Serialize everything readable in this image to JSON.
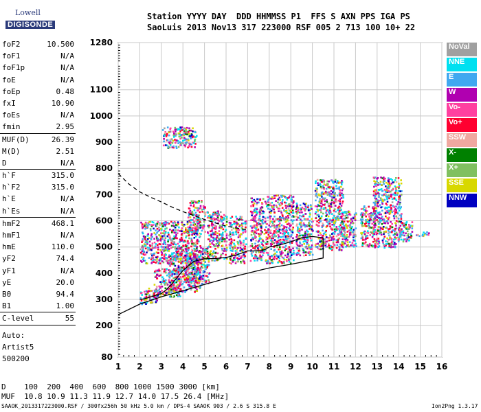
{
  "header": {
    "line1": "Station YYYY DAY  DDD HHMMSS P1  FFS S AXN PPS IGA PS",
    "line2": "SaoLuis 2013 Nov13 317 223000 RSF 005 2 713 100 10+ 22"
  },
  "logo": {
    "top": "Lowell",
    "bottom": "DIGISONDE"
  },
  "parameters": [
    [
      {
        "name": "foF2",
        "value": "10.500"
      },
      {
        "name": "foF1",
        "value": "N/A"
      },
      {
        "name": "foF1p",
        "value": "N/A"
      },
      {
        "name": "foE",
        "value": "N/A"
      },
      {
        "name": "foEp",
        "value": "0.48"
      },
      {
        "name": "fxI",
        "value": "10.90"
      },
      {
        "name": "foEs",
        "value": "N/A"
      },
      {
        "name": "fmin",
        "value": "2.95"
      }
    ],
    [
      {
        "name": "MUF(D)",
        "value": "26.39"
      },
      {
        "name": "M(D)",
        "value": "2.51"
      },
      {
        "name": "D",
        "value": "N/A"
      }
    ],
    [
      {
        "name": "h`F",
        "value": "315.0"
      },
      {
        "name": "h`F2",
        "value": "315.0"
      },
      {
        "name": "h`E",
        "value": "N/A"
      },
      {
        "name": "h`Es",
        "value": "N/A"
      }
    ],
    [
      {
        "name": "hmF2",
        "value": "468.1"
      },
      {
        "name": "hmF1",
        "value": "N/A"
      },
      {
        "name": "hmE",
        "value": "110.0"
      },
      {
        "name": "yF2",
        "value": "74.4"
      },
      {
        "name": "yF1",
        "value": "N/A"
      },
      {
        "name": "yE",
        "value": "20.0"
      },
      {
        "name": "B0",
        "value": "94.4"
      },
      {
        "name": "B1",
        "value": "1.00"
      }
    ],
    [
      {
        "name": "C-level",
        "value": "55"
      }
    ]
  ],
  "auto_info": {
    "line1": "Auto:",
    "line2": "Artist5",
    "line3": "500200"
  },
  "legend": [
    {
      "label": "NoVal",
      "color": "#a0a0a0"
    },
    {
      "label": "NNE",
      "color": "#00e0f0"
    },
    {
      "label": "E",
      "color": "#40a8f0"
    },
    {
      "label": "W",
      "color": "#b000b0"
    },
    {
      "label": "Vo-",
      "color": "#ff40a0"
    },
    {
      "label": "Vo+",
      "color": "#ff0030"
    },
    {
      "label": "SSW",
      "color": "#f0a8a0"
    },
    {
      "label": "X-",
      "color": "#008000"
    },
    {
      "label": "X+",
      "color": "#80c060"
    },
    {
      "label": "SSE",
      "color": "#d8d800"
    },
    {
      "label": "NNW",
      "color": "#0000c0"
    }
  ],
  "footer": {
    "line1": "D    100  200  400  600  800 1000 1500 3000 [km]",
    "line2": "MUF  10.8 10.9 11.3 11.9 12.7 14.0 17.5 26.4 [MHz]",
    "line3": "SAAOK_2013317223000.RSF / 300fx256h 50 kHz 5.0 km / DPS-4 SAAOK 903 / 2.6 S 315.8 E",
    "version": "Ion2Png 1.3.17"
  },
  "chart_data": {
    "type": "scatter",
    "title": "",
    "xlabel": "",
    "ylabel": "",
    "xlim": [
      1,
      16
    ],
    "ylim": [
      80,
      1280
    ],
    "x_ticks": [
      1,
      2,
      3,
      4,
      5,
      6,
      7,
      8,
      9,
      10,
      11,
      12,
      13,
      14,
      15,
      16
    ],
    "y_ticks": [
      80,
      200,
      300,
      400,
      500,
      600,
      700,
      800,
      900,
      1000,
      1100,
      1280
    ],
    "grid": true,
    "series": [
      {
        "name": "trace-solid",
        "x": [
          1.0,
          2.0,
          3.0,
          4.0,
          5.0,
          6.0,
          7.0,
          8.0,
          9.0,
          10.0,
          10.5,
          10.5,
          10.0,
          9.5,
          9.0,
          8.5,
          8.0,
          7.8,
          7.5,
          7.0,
          6.5,
          6.0,
          5.5,
          5.0,
          4.5,
          4.0,
          3.5,
          3.2,
          3.0,
          2.6,
          2.2,
          2.0
        ],
        "y": [
          242,
          282,
          310,
          333,
          357,
          380,
          400,
          420,
          434,
          450,
          458,
          535,
          540,
          535,
          520,
          508,
          500,
          490,
          485,
          485,
          470,
          460,
          456,
          455,
          445,
          410,
          360,
          335,
          322,
          312,
          302,
          300
        ]
      },
      {
        "name": "trace-dashed",
        "x": [
          1.0,
          1.5,
          2.0,
          2.5,
          3.0,
          3.5,
          4.0,
          4.5,
          5.0,
          5.5,
          6.0,
          6.5,
          7.0
        ],
        "y": [
          780,
          740,
          710,
          690,
          672,
          652,
          635,
          620,
          605,
          592,
          580,
          572,
          565
        ]
      },
      {
        "name": "echo-clusters",
        "clusters": [
          {
            "x": [
              2.0,
              2.8
            ],
            "y": [
              285,
              345
            ]
          },
          {
            "x": [
              2.6,
              3.9
            ],
            "y": [
              310,
              420
            ]
          },
          {
            "x": [
              3.3,
              4.8
            ],
            "y": [
              330,
              470
            ]
          },
          {
            "x": [
              4.0,
              5.2
            ],
            "y": [
              360,
              500
            ]
          },
          {
            "x": [
              2.0,
              4.8
            ],
            "y": [
              440,
              600
            ]
          },
          {
            "x": [
              4.2,
              5.0
            ],
            "y": [
              560,
              680
            ]
          },
          {
            "x": [
              5.1,
              6.0
            ],
            "y": [
              450,
              640
            ]
          },
          {
            "x": [
              6.1,
              6.9
            ],
            "y": [
              440,
              620
            ]
          },
          {
            "x": [
              7.1,
              7.8
            ],
            "y": [
              450,
              690
            ]
          },
          {
            "x": [
              7.8,
              9.1
            ],
            "y": [
              440,
              700
            ]
          },
          {
            "x": [
              9.2,
              10.0
            ],
            "y": [
              470,
              670
            ]
          },
          {
            "x": [
              10.1,
              11.4
            ],
            "y": [
              490,
              760
            ]
          },
          {
            "x": [
              11.3,
              12.0
            ],
            "y": [
              500,
              640
            ]
          },
          {
            "x": [
              12.2,
              12.9
            ],
            "y": [
              500,
              660
            ]
          },
          {
            "x": [
              12.8,
              14.1
            ],
            "y": [
              500,
              770
            ]
          },
          {
            "x": [
              14.0,
              14.6
            ],
            "y": [
              520,
              600
            ]
          },
          {
            "x": [
              14.8,
              15.4
            ],
            "y": [
              540,
              560
            ]
          },
          {
            "x": [
              3.0,
              4.6
            ],
            "y": [
              880,
              960
            ]
          }
        ]
      }
    ]
  }
}
